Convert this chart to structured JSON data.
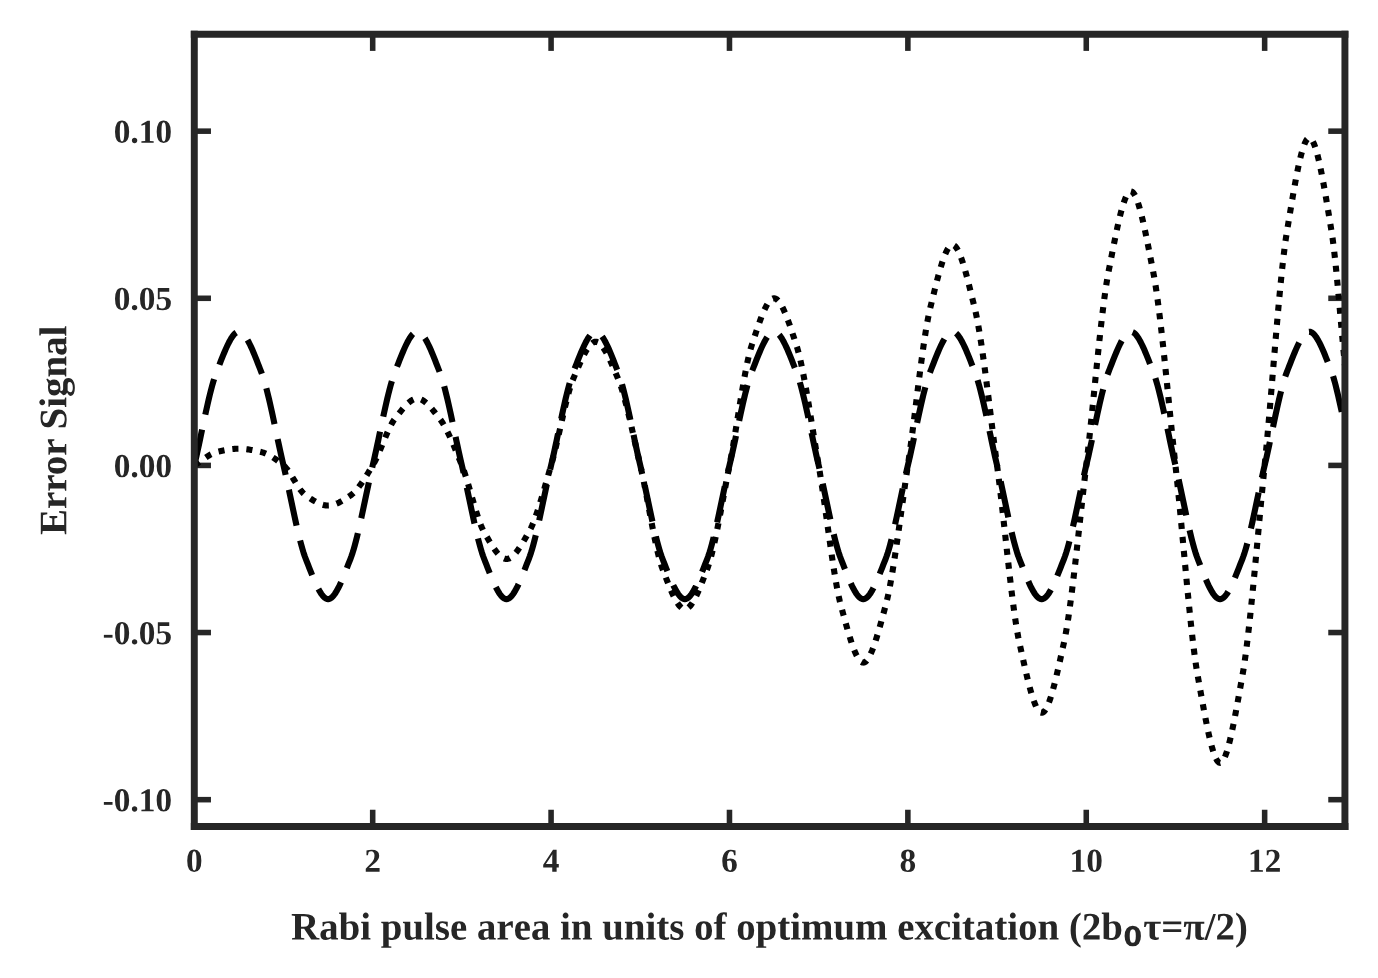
{
  "chart_data": {
    "type": "line",
    "xlabel": "Rabi pulse area in units of optimum excitation (2b$_{0}$τ=π/2)",
    "ylabel": "Error Signal",
    "x": [
      0,
      0.25,
      0.5,
      0.75,
      1,
      1.25,
      1.5,
      1.75,
      2,
      2.25,
      2.5,
      2.75,
      3,
      3.25,
      3.5,
      3.75,
      4,
      4.25,
      4.5,
      4.75,
      5,
      5.25,
      5.5,
      5.75,
      6,
      6.25,
      6.5,
      6.75,
      7,
      7.25,
      7.5,
      7.75,
      8,
      8.25,
      8.5,
      8.75,
      9,
      9.25,
      9.5,
      9.75,
      10,
      10.25,
      10.5,
      10.75,
      11,
      11.25,
      11.5,
      11.75,
      12,
      12.25,
      12.5,
      12.75,
      12.9
    ],
    "series": [
      {
        "color": "#000000",
        "line_style": "dashed",
        "values": [
          0,
          0.028,
          0.04,
          0.028,
          0,
          -0.028,
          -0.04,
          -0.028,
          0,
          0.028,
          0.04,
          0.028,
          0,
          -0.028,
          -0.04,
          -0.028,
          0,
          0.028,
          0.04,
          0.028,
          0,
          -0.028,
          -0.04,
          -0.028,
          0,
          0.028,
          0.04,
          0.028,
          0,
          -0.028,
          -0.04,
          -0.028,
          0,
          0.028,
          0.04,
          0.028,
          0,
          -0.028,
          -0.04,
          -0.028,
          0,
          0.028,
          0.04,
          0.028,
          0,
          -0.028,
          -0.04,
          -0.028,
          0,
          0.028,
          0.04,
          0.028,
          0.012
        ]
      },
      {
        "color": "#000000",
        "line_style": "dotted",
        "values": [
          0,
          0.004,
          0.005,
          0.004,
          0,
          -0.009,
          -0.012,
          -0.009,
          0,
          0.014,
          0.02,
          0.014,
          0,
          -0.02,
          -0.028,
          -0.02,
          0,
          0.026,
          0.037,
          0.026,
          0,
          -0.031,
          -0.043,
          -0.031,
          0,
          0.036,
          0.05,
          0.036,
          0,
          -0.042,
          -0.059,
          -0.042,
          0,
          0.047,
          0.066,
          0.047,
          0,
          -0.053,
          -0.074,
          -0.053,
          0,
          0.058,
          0.082,
          0.058,
          0,
          -0.063,
          -0.089,
          -0.063,
          0,
          0.07,
          0.098,
          0.07,
          0.03
        ]
      }
    ],
    "xlim": [
      0,
      12.9
    ],
    "ylim": [
      -0.108,
      0.129
    ],
    "xticks": [
      0,
      2,
      4,
      6,
      8,
      10,
      12
    ],
    "yticks": [
      {
        "value": -0.1,
        "label": "-0.10"
      },
      {
        "value": -0.05,
        "label": "-0.05"
      },
      {
        "value": 0,
        "label": "0.00"
      },
      {
        "value": 0.05,
        "label": "0.05"
      },
      {
        "value": 0.1,
        "label": "0.10"
      }
    ],
    "grid": false,
    "legend": false,
    "marker": "none"
  }
}
